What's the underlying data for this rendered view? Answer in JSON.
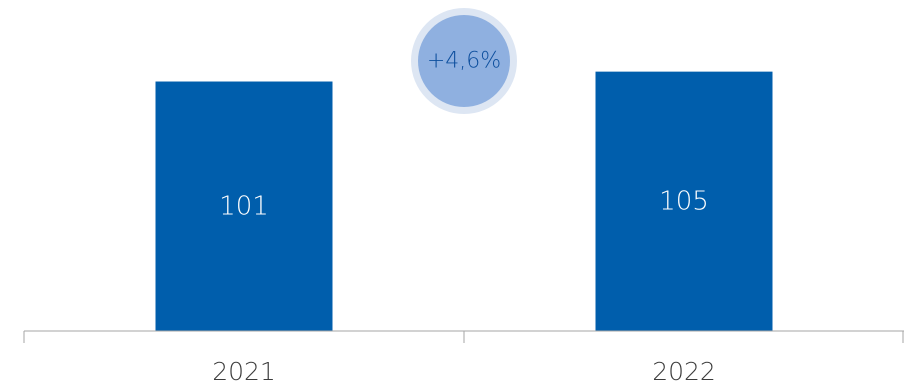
{
  "chart_data": {
    "type": "bar",
    "categories": [
      "2021",
      "2022"
    ],
    "values": [
      101,
      105
    ],
    "data_labels": [
      "101",
      "105"
    ],
    "title": "",
    "xlabel": "",
    "ylabel": "",
    "ylim": [
      0,
      134
    ],
    "grid": false,
    "legend": "none",
    "annotation": {
      "text": "+4,6%",
      "between": [
        "2021",
        "2022"
      ],
      "shape": "circle"
    }
  },
  "colors": {
    "bar": "#005eac",
    "data_label": "#ffffff",
    "axis": "#a6a6a6",
    "tick_label": "#3c3c3c",
    "badge_outer": "#dde6f3",
    "badge_inner": "#8fb0e0",
    "badge_text": "#0d4f9e"
  }
}
